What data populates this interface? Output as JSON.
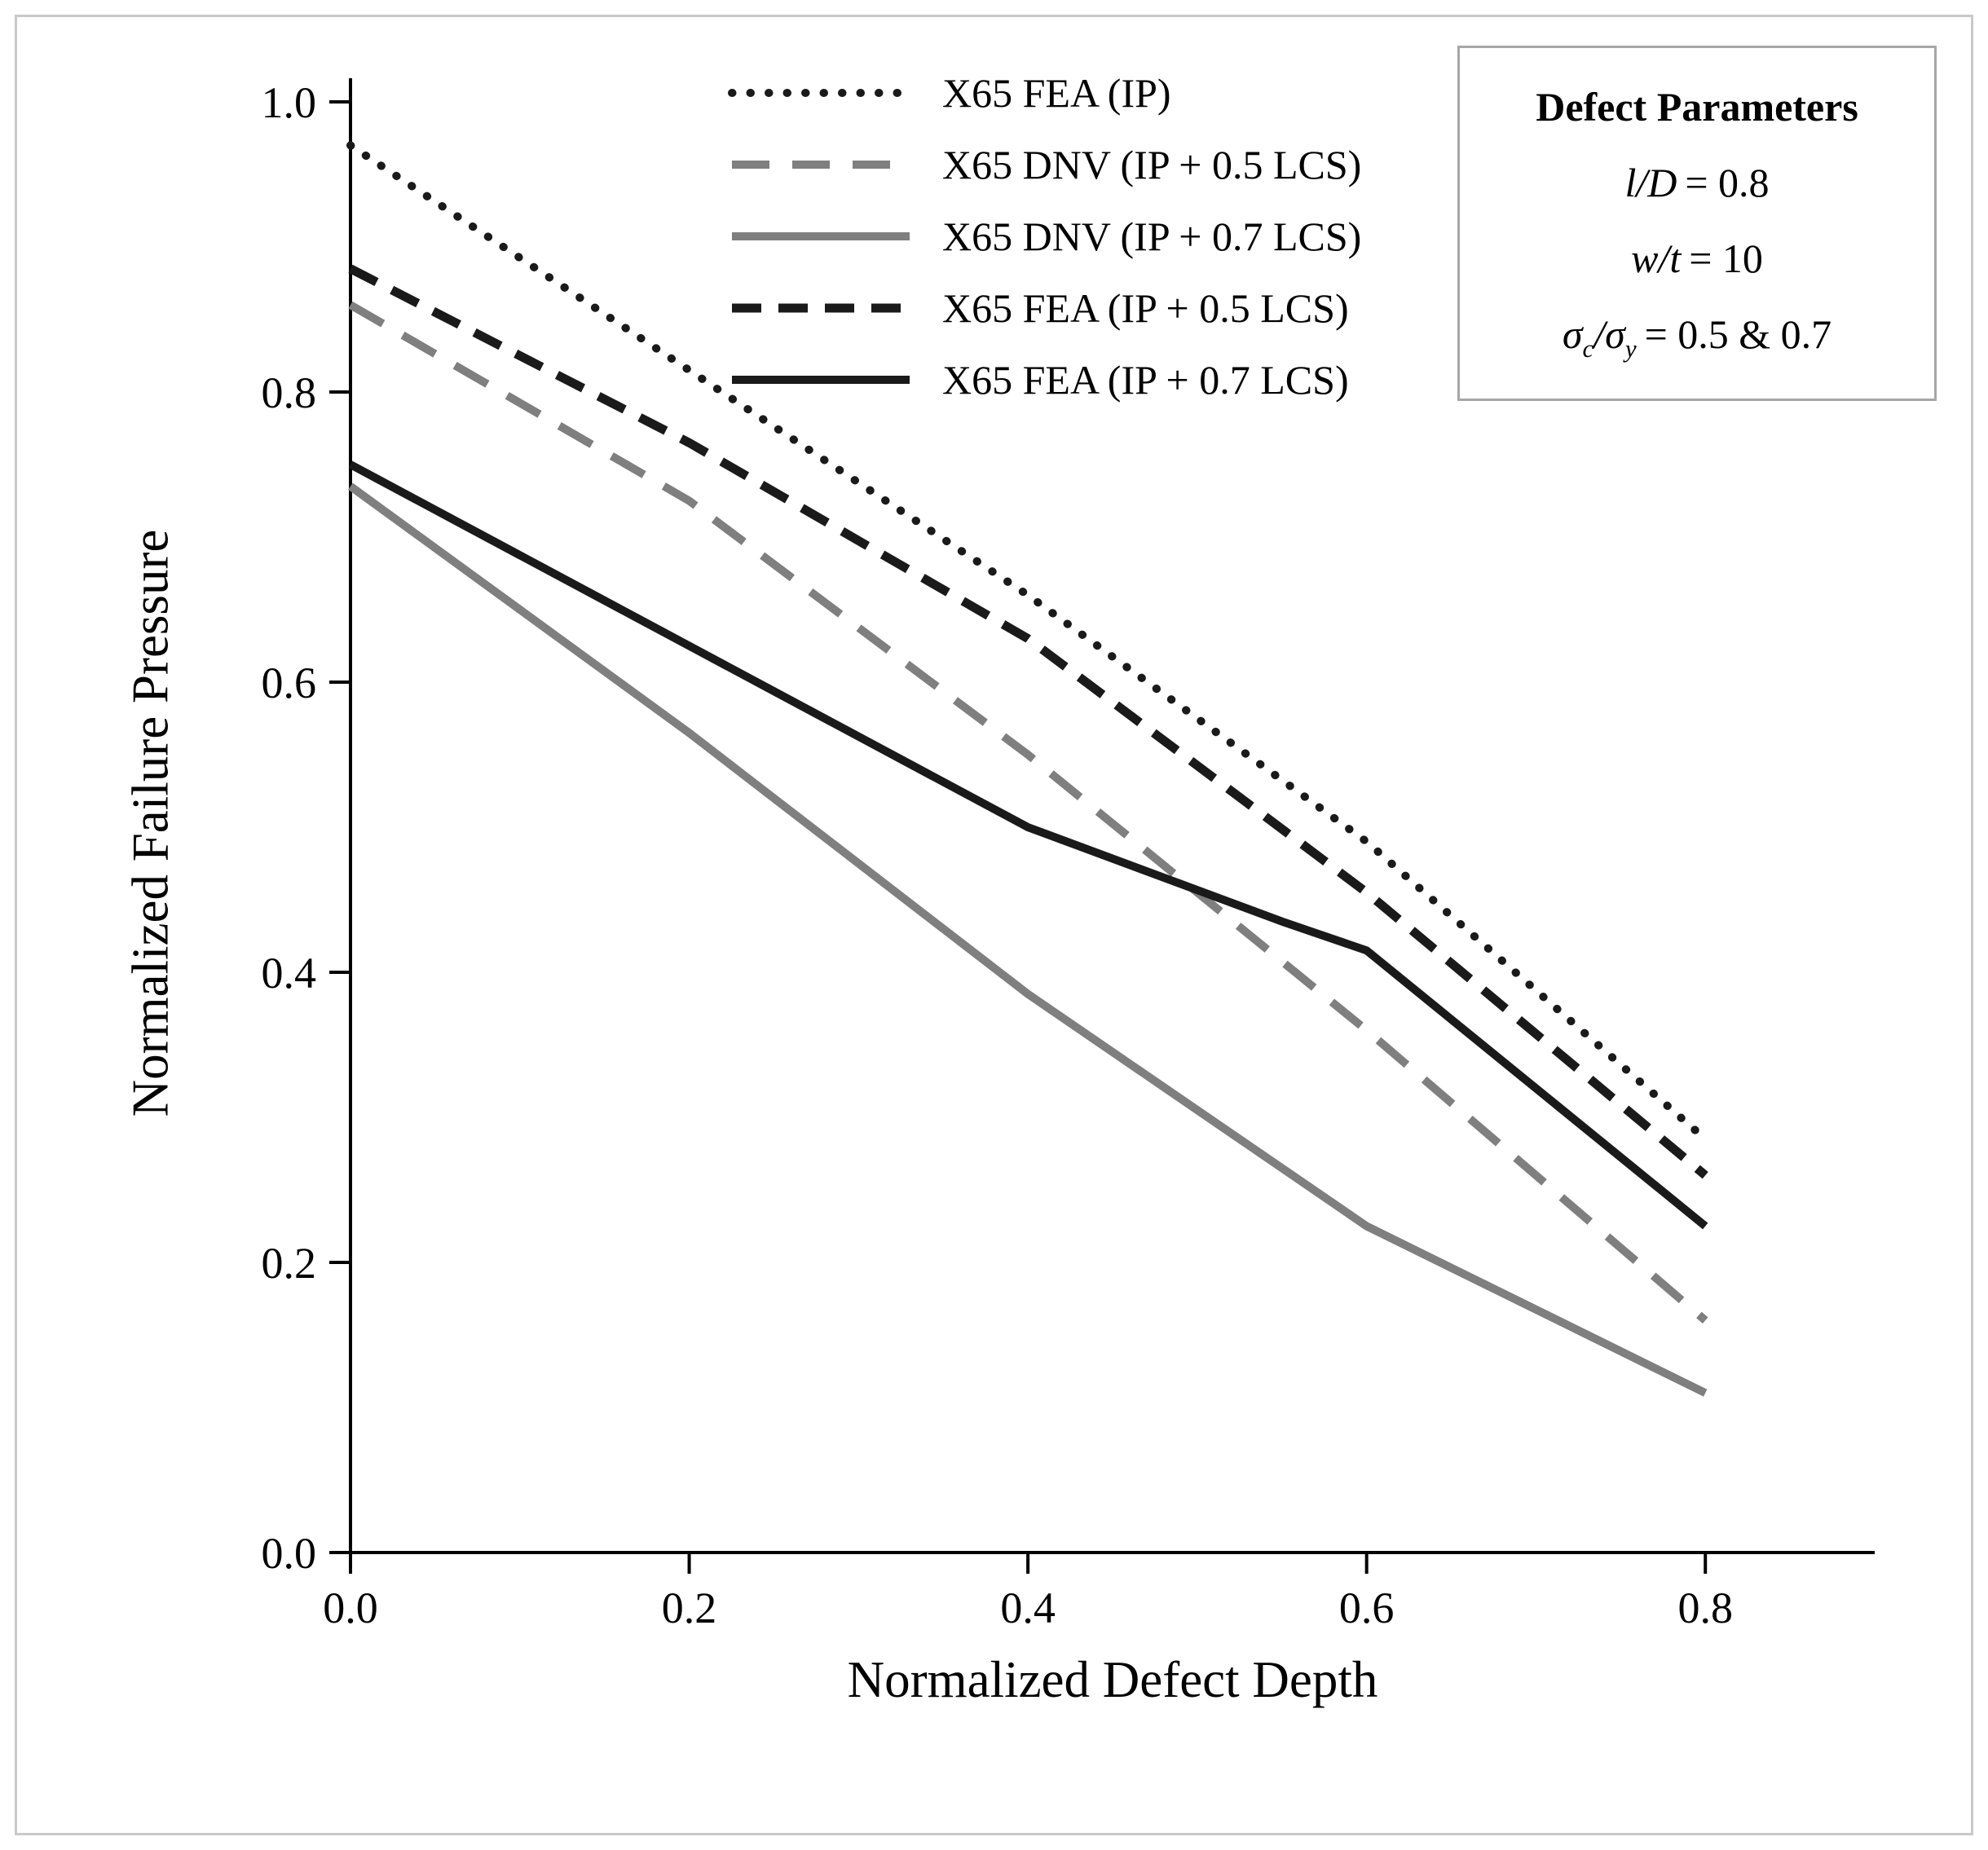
{
  "chart_data": {
    "type": "line",
    "title": "",
    "xlabel": "Normalized Defect Depth",
    "ylabel": "Normalized Failure Pressure",
    "xlim": [
      0,
      0.9
    ],
    "ylim": [
      0,
      1.0
    ],
    "grid": false,
    "legend_position": "top-center-inside",
    "x_ticks": {
      "values": [
        0,
        0.2,
        0.4,
        0.6,
        0.8
      ],
      "labels": [
        "0.0",
        "0.2",
        "0.4",
        "0.6",
        "0.8"
      ]
    },
    "y_ticks": {
      "values": [
        0,
        0.2,
        0.4,
        0.6,
        0.8,
        1.0
      ],
      "labels": [
        "0.0",
        "0.2",
        "0.4",
        "0.6",
        "0.8",
        "1.0"
      ]
    },
    "colors": {
      "black": "#1a1a1a",
      "gray": "#7f7f7f"
    },
    "series": [
      {
        "name": "X65 FEA (IP)",
        "color": "#1a1a1a",
        "line_style": "dotted",
        "x": [
          0,
          0.2,
          0.4,
          0.6,
          0.8
        ],
        "y": [
          0.97,
          0.815,
          0.66,
          0.49,
          0.285
        ]
      },
      {
        "name": "X65 DNV (IP + 0.5 LCS)",
        "color": "#7f7f7f",
        "line_style": "dashed",
        "x": [
          0,
          0.2,
          0.4,
          0.6,
          0.8
        ],
        "y": [
          0.86,
          0.725,
          0.55,
          0.36,
          0.16
        ]
      },
      {
        "name": "X65 DNV (IP + 0.7 LCS)",
        "color": "#7f7f7f",
        "line_style": "solid",
        "x": [
          0,
          0.2,
          0.4,
          0.6,
          0.8
        ],
        "y": [
          0.735,
          0.565,
          0.385,
          0.225,
          0.11
        ]
      },
      {
        "name": "X65 FEA (IP + 0.5 LCS)",
        "color": "#1a1a1a",
        "line_style": "dashed",
        "x": [
          0,
          0.2,
          0.4,
          0.6,
          0.8
        ],
        "y": [
          0.885,
          0.765,
          0.63,
          0.455,
          0.26
        ]
      },
      {
        "name": "X65 FEA (IP + 0.7 LCS)",
        "color": "#1a1a1a",
        "line_style": "solid",
        "x": [
          0,
          0.2,
          0.4,
          0.55,
          0.6,
          0.8
        ],
        "y": [
          0.75,
          0.625,
          0.5,
          0.435,
          0.415,
          0.225
        ]
      }
    ],
    "annotation": {
      "title": "Defect Parameters",
      "line1": {
        "lhs": "l/D",
        "rhs": "= 0.8"
      },
      "line2": {
        "lhs": "w/t",
        "rhs": "= 10"
      },
      "line3": {
        "sigma1": "σ",
        "sub1": "c",
        "slash": "/",
        "sigma2": "σ",
        "sub2": "y",
        "rhs": "= 0.5 & 0.7"
      }
    }
  }
}
